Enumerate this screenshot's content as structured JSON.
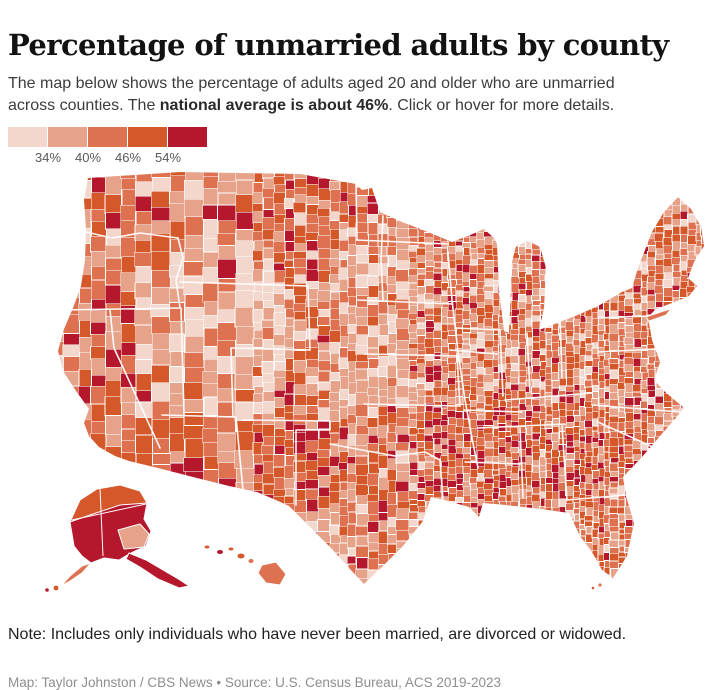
{
  "header": {
    "title": "Percentage of unmarried adults by county",
    "description": {
      "part1": "The map below shows the percentage of adults aged 20 and older who are unmarried across counties. The ",
      "bold": "national average is about 46%",
      "part2": ". Click or hover for more details."
    }
  },
  "legend": {
    "labels": [
      "34%",
      "40%",
      "46%",
      "54%"
    ]
  },
  "chart_data": {
    "type": "choropleth",
    "title": "Percentage of unmarried adults by county",
    "metric": "Percent of adults aged 20 and older who are unmarried",
    "national_average_pct": 46,
    "legend_breaks_pct": [
      34,
      40,
      46,
      54
    ],
    "bin_colors": [
      "#f3d7cd",
      "#e7a28a",
      "#dd7150",
      "#d4582a",
      "#b5182c"
    ],
    "bin_ranges": [
      "under 34%",
      "34-40%",
      "40-46%",
      "46-54%",
      "over 54%"
    ],
    "geography": "U.S. counties, with Alaska and Hawaii insets",
    "interaction_hint": "Click or hover for more details",
    "regional_patterns": [
      {
        "region": "Interior West (Utah, Idaho)",
        "level": "lightest, mostly under 34-40%"
      },
      {
        "region": "Great Plains",
        "level": "mostly below average, 34-40%"
      },
      {
        "region": "Deep South belt (Mississippi, Alabama, Georgia)",
        "level": "dark clusters above 54%"
      },
      {
        "region": "West Texas and eastern New Mexico",
        "level": "dark clusters above 54%"
      },
      {
        "region": "Alaska boroughs",
        "level": "mostly above 54%"
      },
      {
        "region": "Coasts, Southwest and Northeast",
        "level": "around or above the 46% average"
      }
    ]
  },
  "note": "Note: Includes only individuals who have never been married, are divorced or widowed.",
  "credit": "Map: Taylor Johnston / CBS News • Source: U.S. Census Bureau, ACS 2019-2023"
}
